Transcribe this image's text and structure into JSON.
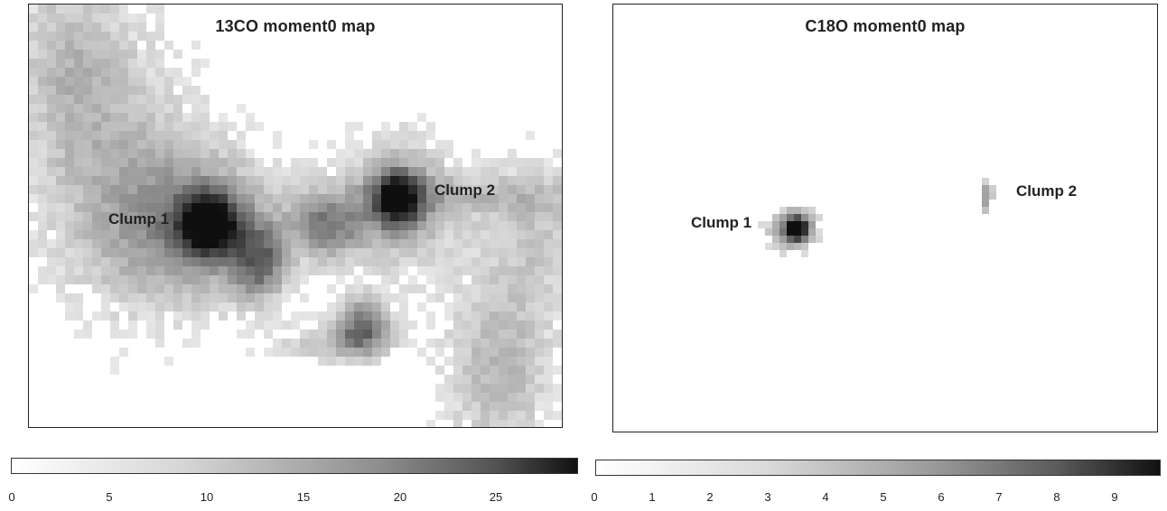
{
  "left_map": {
    "title": "13CO moment0 map",
    "clump1_label": "Clump 1",
    "clump2_label": "Clump 2",
    "colorbar_ticks": [
      "0",
      "5",
      "10",
      "15",
      "20",
      "25"
    ]
  },
  "right_map": {
    "title": "C18O moment0 map",
    "clump1_label": "Clump 1",
    "clump2_label": "Clump 2",
    "colorbar_ticks": [
      "0",
      "1",
      "2",
      "3",
      "4",
      "5",
      "6",
      "7",
      "8",
      "9"
    ]
  },
  "colormap": "greyscale (white = low, black = high)"
}
